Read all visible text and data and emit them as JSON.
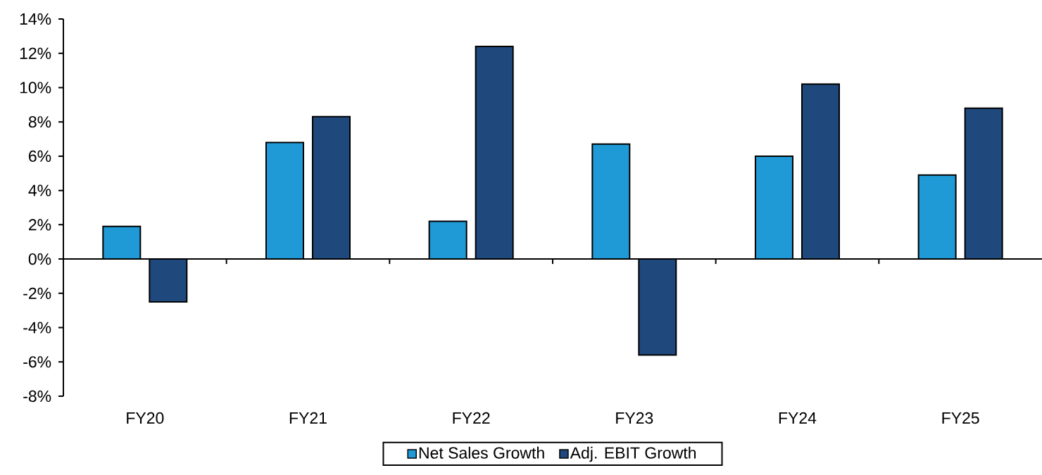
{
  "chart_data": {
    "type": "bar",
    "categories": [
      "FY20",
      "FY21",
      "FY22",
      "FY23",
      "FY24",
      "FY25"
    ],
    "series": [
      {
        "name": "Net Sales Growth",
        "color": "#1f9ad6",
        "values": [
          1.9,
          6.8,
          2.2,
          6.7,
          6.0,
          4.9
        ]
      },
      {
        "name": "Adj. EBIT Growth",
        "color": "#1f497d",
        "values": [
          -2.5,
          8.3,
          12.4,
          -5.6,
          10.2,
          8.8
        ]
      }
    ],
    "ylim": [
      -8,
      14
    ],
    "yticks": [
      {
        "value": -8,
        "label": "-8%"
      },
      {
        "value": -6,
        "label": "-6%"
      },
      {
        "value": -4,
        "label": "-4%"
      },
      {
        "value": -2,
        "label": "-2%"
      },
      {
        "value": 0,
        "label": "0%"
      },
      {
        "value": 2,
        "label": "2%"
      },
      {
        "value": 4,
        "label": "4%"
      },
      {
        "value": 6,
        "label": "6%"
      },
      {
        "value": 8,
        "label": "8%"
      },
      {
        "value": 10,
        "label": "10%"
      },
      {
        "value": 12,
        "label": "12%"
      },
      {
        "value": 14,
        "label": "14%"
      }
    ],
    "legend": "bottom"
  }
}
